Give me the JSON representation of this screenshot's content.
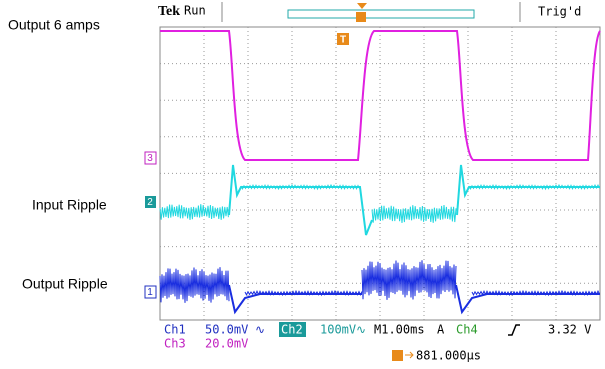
{
  "annotations": {
    "output_current": "Output 6 amps",
    "input_ripple": "Input Ripple",
    "output_ripple": "Output Ripple"
  },
  "status": {
    "brand": "Tek",
    "mode": "Run",
    "trigger_state": "Trig'd",
    "trigger_marker": "T"
  },
  "channel_markers": {
    "ch3": "3",
    "ch2": "2",
    "ch1": "1"
  },
  "readout": {
    "ch1_name": "Ch1",
    "ch1_scale": "50.0mV",
    "ch2_name": "Ch2",
    "ch2_scale": "100mV",
    "timebase": "M1.00ms",
    "trigger_mode": "A",
    "trigger_source": "Ch4",
    "trigger_level": "3.32 V",
    "ch3_name": "Ch3",
    "ch3_scale": "20.0mV",
    "trigger_position": "881.000µs",
    "bw_symbol": "∿"
  }
}
